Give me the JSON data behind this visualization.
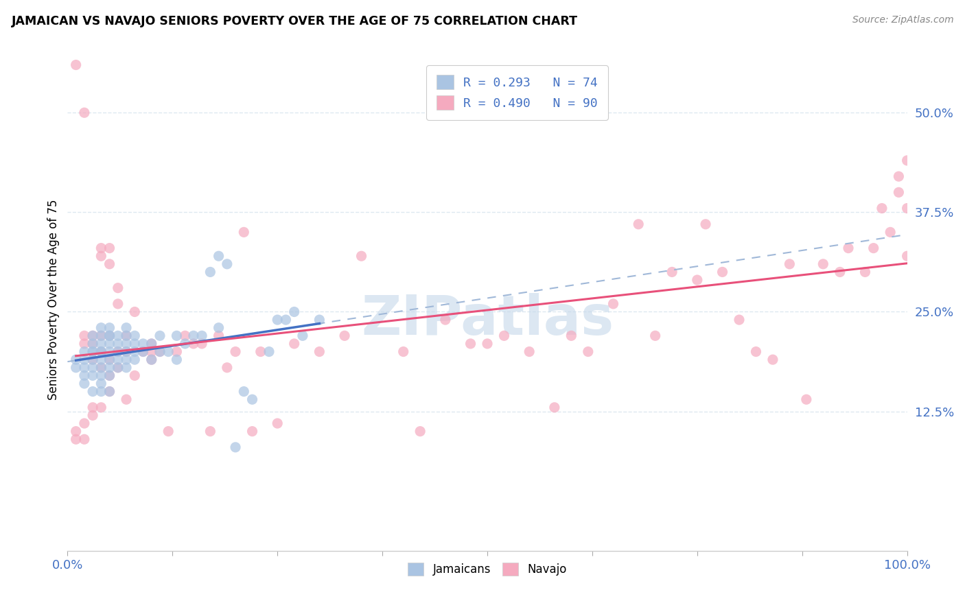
{
  "title": "JAMAICAN VS NAVAJO SENIORS POVERTY OVER THE AGE OF 75 CORRELATION CHART",
  "source": "Source: ZipAtlas.com",
  "ylabel": "Seniors Poverty Over the Age of 75",
  "xlim": [
    0,
    1.0
  ],
  "ylim": [
    -0.05,
    0.58
  ],
  "ytick_positions": [
    0.125,
    0.25,
    0.375,
    0.5
  ],
  "ytick_labels": [
    "12.5%",
    "25.0%",
    "37.5%",
    "50.0%"
  ],
  "legend_label1": "R = 0.293   N = 74",
  "legend_label2": "R = 0.490   N = 90",
  "jamaicans_color": "#aac4e2",
  "navajo_color": "#f5aabf",
  "jamaicans_line_color": "#4472c4",
  "navajo_line_color": "#e8507a",
  "dashed_line_color": "#a0b8d8",
  "watermark": "ZIPatlas",
  "watermark_color": "#c5d8ea",
  "background_color": "#ffffff",
  "grid_color": "#dde8f0",
  "jamaicans_x": [
    0.01,
    0.01,
    0.02,
    0.02,
    0.02,
    0.02,
    0.02,
    0.03,
    0.03,
    0.03,
    0.03,
    0.03,
    0.03,
    0.03,
    0.03,
    0.04,
    0.04,
    0.04,
    0.04,
    0.04,
    0.04,
    0.04,
    0.04,
    0.04,
    0.04,
    0.05,
    0.05,
    0.05,
    0.05,
    0.05,
    0.05,
    0.05,
    0.05,
    0.05,
    0.06,
    0.06,
    0.06,
    0.06,
    0.06,
    0.07,
    0.07,
    0.07,
    0.07,
    0.07,
    0.07,
    0.08,
    0.08,
    0.08,
    0.08,
    0.09,
    0.09,
    0.1,
    0.1,
    0.11,
    0.11,
    0.12,
    0.13,
    0.13,
    0.14,
    0.15,
    0.16,
    0.18,
    0.2,
    0.21,
    0.22,
    0.24,
    0.25,
    0.26,
    0.27,
    0.28,
    0.3,
    0.17,
    0.18,
    0.19
  ],
  "jamaicans_y": [
    0.18,
    0.19,
    0.16,
    0.17,
    0.18,
    0.19,
    0.2,
    0.15,
    0.17,
    0.18,
    0.19,
    0.2,
    0.2,
    0.21,
    0.22,
    0.15,
    0.16,
    0.17,
    0.18,
    0.19,
    0.2,
    0.2,
    0.21,
    0.22,
    0.23,
    0.15,
    0.17,
    0.18,
    0.19,
    0.2,
    0.21,
    0.22,
    0.22,
    0.23,
    0.18,
    0.19,
    0.2,
    0.21,
    0.22,
    0.18,
    0.19,
    0.2,
    0.21,
    0.22,
    0.23,
    0.19,
    0.2,
    0.21,
    0.22,
    0.2,
    0.21,
    0.19,
    0.21,
    0.2,
    0.22,
    0.2,
    0.19,
    0.22,
    0.21,
    0.22,
    0.22,
    0.23,
    0.08,
    0.15,
    0.14,
    0.2,
    0.24,
    0.24,
    0.25,
    0.22,
    0.24,
    0.3,
    0.32,
    0.31
  ],
  "navajo_x": [
    0.01,
    0.01,
    0.01,
    0.02,
    0.02,
    0.02,
    0.02,
    0.02,
    0.03,
    0.03,
    0.03,
    0.03,
    0.03,
    0.04,
    0.04,
    0.04,
    0.04,
    0.04,
    0.04,
    0.05,
    0.05,
    0.05,
    0.05,
    0.05,
    0.05,
    0.06,
    0.06,
    0.06,
    0.06,
    0.07,
    0.07,
    0.07,
    0.08,
    0.08,
    0.09,
    0.1,
    0.1,
    0.1,
    0.11,
    0.12,
    0.13,
    0.14,
    0.15,
    0.16,
    0.17,
    0.18,
    0.19,
    0.2,
    0.21,
    0.22,
    0.23,
    0.25,
    0.27,
    0.3,
    0.33,
    0.35,
    0.4,
    0.42,
    0.45,
    0.48,
    0.5,
    0.52,
    0.55,
    0.58,
    0.6,
    0.62,
    0.65,
    0.68,
    0.7,
    0.72,
    0.75,
    0.76,
    0.78,
    0.8,
    0.82,
    0.84,
    0.86,
    0.88,
    0.9,
    0.92,
    0.93,
    0.95,
    0.96,
    0.97,
    0.98,
    0.99,
    0.99,
    1.0,
    1.0,
    1.0
  ],
  "navajo_y": [
    0.09,
    0.1,
    0.56,
    0.09,
    0.11,
    0.21,
    0.22,
    0.5,
    0.12,
    0.13,
    0.19,
    0.21,
    0.22,
    0.13,
    0.18,
    0.2,
    0.22,
    0.32,
    0.33,
    0.15,
    0.17,
    0.19,
    0.22,
    0.31,
    0.33,
    0.18,
    0.2,
    0.26,
    0.28,
    0.14,
    0.2,
    0.22,
    0.17,
    0.25,
    0.2,
    0.19,
    0.2,
    0.21,
    0.2,
    0.1,
    0.2,
    0.22,
    0.21,
    0.21,
    0.1,
    0.22,
    0.18,
    0.2,
    0.35,
    0.1,
    0.2,
    0.11,
    0.21,
    0.2,
    0.22,
    0.32,
    0.2,
    0.1,
    0.24,
    0.21,
    0.21,
    0.22,
    0.2,
    0.13,
    0.22,
    0.2,
    0.26,
    0.36,
    0.22,
    0.3,
    0.29,
    0.36,
    0.3,
    0.24,
    0.2,
    0.19,
    0.31,
    0.14,
    0.31,
    0.3,
    0.33,
    0.3,
    0.33,
    0.38,
    0.35,
    0.4,
    0.42,
    0.32,
    0.38,
    0.44
  ]
}
